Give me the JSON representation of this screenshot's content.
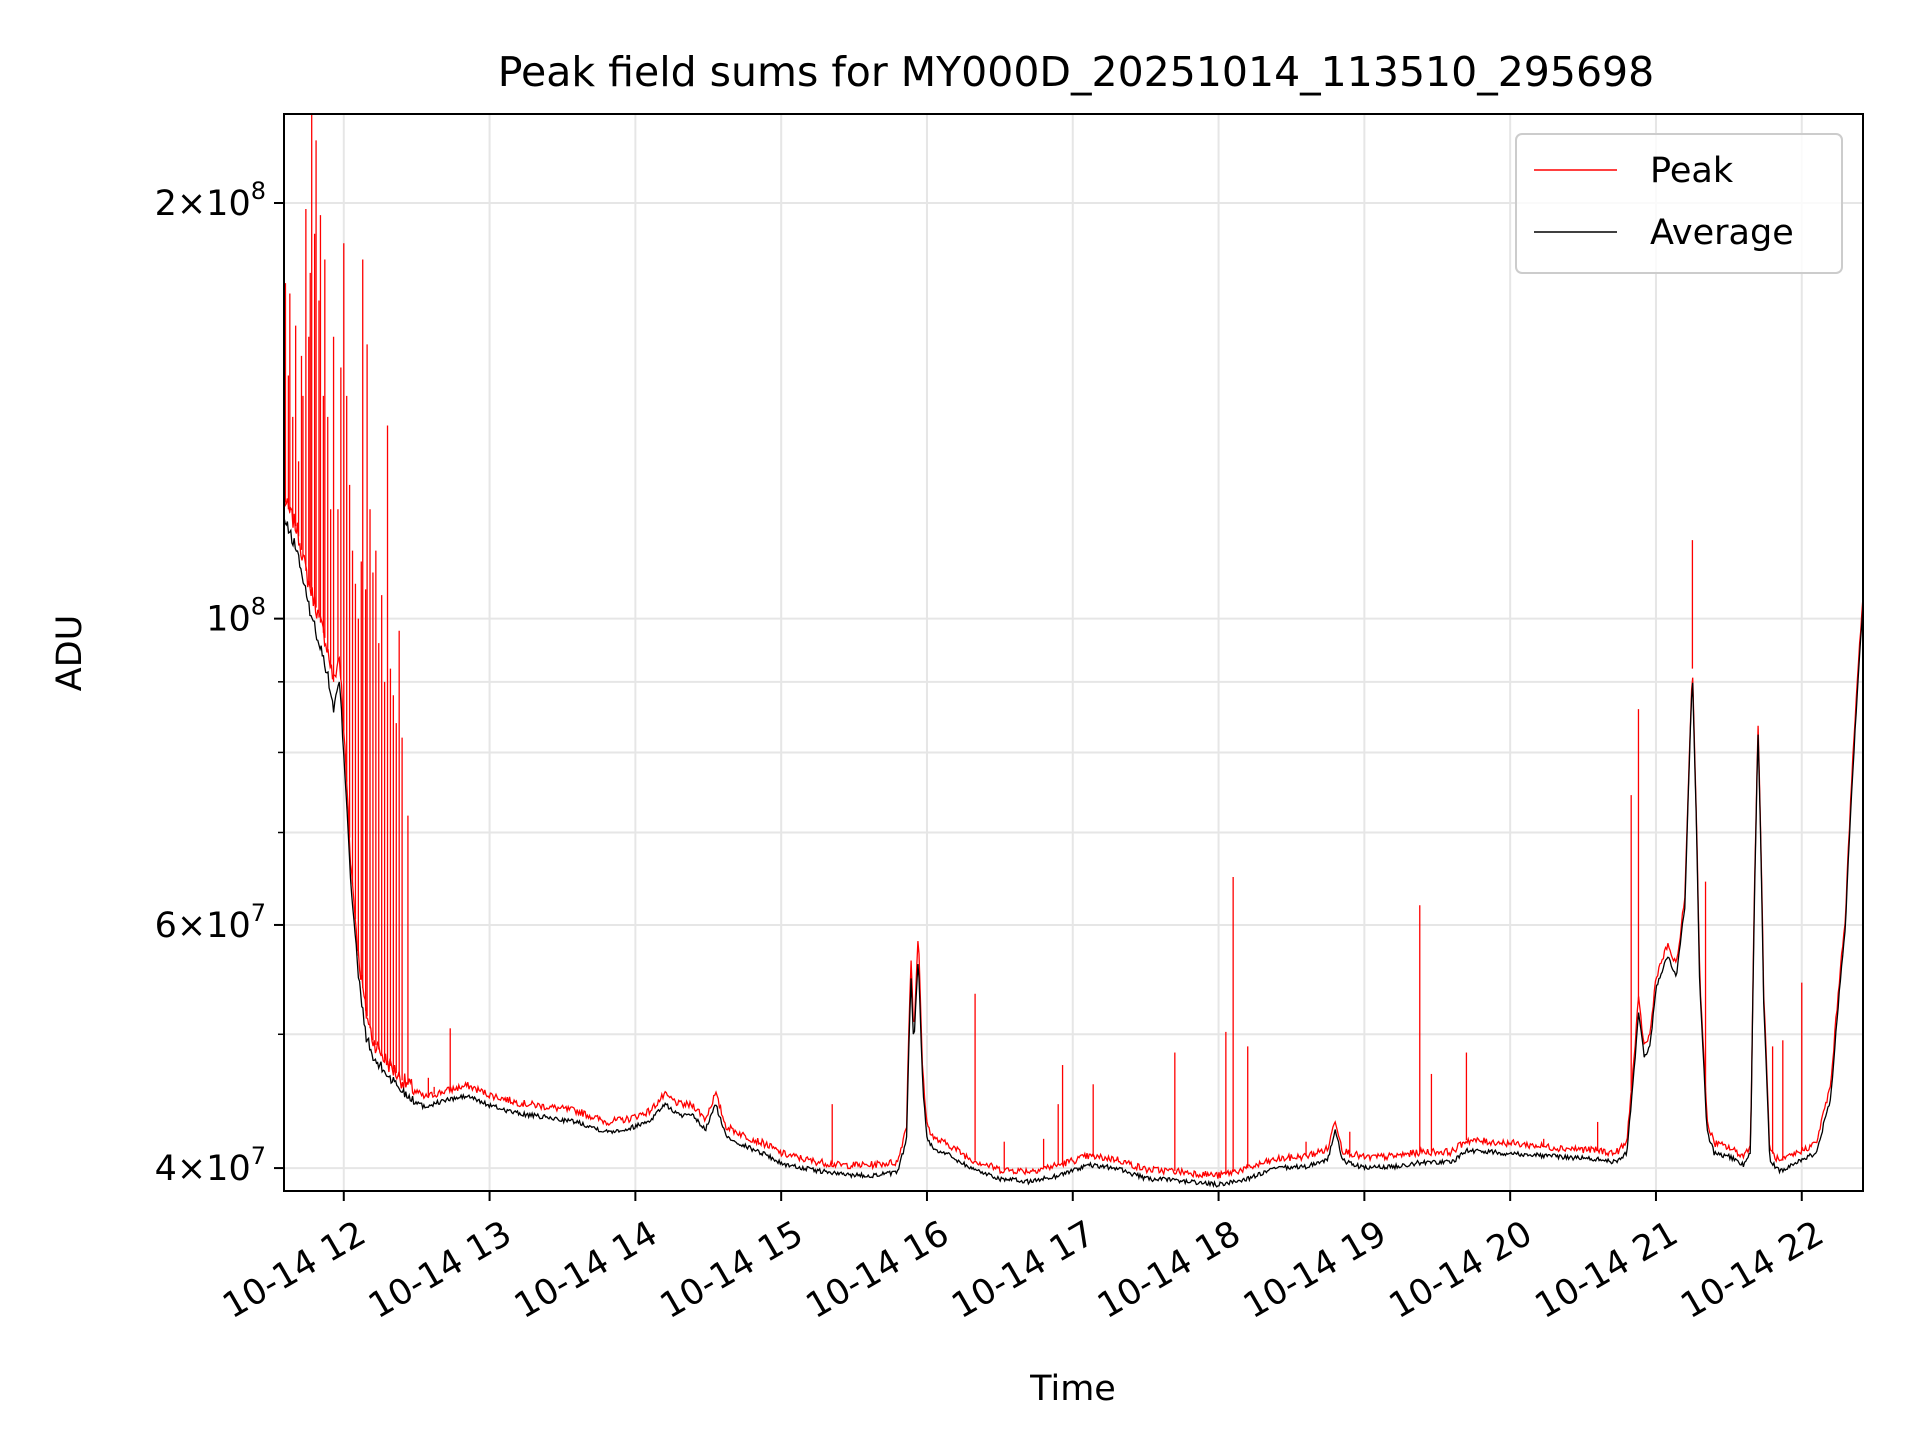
{
  "chart_data": {
    "type": "line",
    "title": "Peak field sums for MY000D_20251014_113510_295698",
    "xlabel": "Time",
    "ylabel": "ADU",
    "yscale": "log",
    "ylim": [
      38500000,
      232000000
    ],
    "xlim_hours": [
      11.59,
      22.42
    ],
    "grid": true,
    "legend": {
      "position": "upper right",
      "entries": [
        {
          "name": "Peak",
          "color": "#ff0000"
        },
        {
          "name": "Average",
          "color": "#000000"
        }
      ]
    },
    "x_ticks": [
      {
        "hour": 12,
        "label": "10-14 12"
      },
      {
        "hour": 13,
        "label": "10-14 13"
      },
      {
        "hour": 14,
        "label": "10-14 14"
      },
      {
        "hour": 15,
        "label": "10-14 15"
      },
      {
        "hour": 16,
        "label": "10-14 16"
      },
      {
        "hour": 17,
        "label": "10-14 17"
      },
      {
        "hour": 18,
        "label": "10-14 18"
      },
      {
        "hour": 19,
        "label": "10-14 19"
      },
      {
        "hour": 20,
        "label": "10-14 20"
      },
      {
        "hour": 21,
        "label": "10-14 21"
      },
      {
        "hour": 22,
        "label": "10-14 22"
      }
    ],
    "y_major_ticks": [
      {
        "value": 40000000,
        "mant": "4",
        "exp": "7"
      },
      {
        "value": 60000000,
        "mant": "6",
        "exp": "7"
      },
      {
        "value": 100000000,
        "mant": "",
        "exp": "8"
      },
      {
        "value": 200000000,
        "mant": "2",
        "exp": "8"
      }
    ],
    "y_minor_ticks": [
      50000000,
      70000000,
      80000000,
      90000000
    ],
    "average_series": {
      "name": "Average",
      "color": "#000000",
      "points": [
        [
          11.59,
          118
        ],
        [
          11.68,
          112
        ],
        [
          11.75,
          103
        ],
        [
          11.82,
          97
        ],
        [
          11.88,
          92
        ],
        [
          11.93,
          86
        ],
        [
          11.97,
          90
        ],
        [
          12.0,
          80
        ],
        [
          12.05,
          64
        ],
        [
          12.1,
          55
        ],
        [
          12.15,
          50
        ],
        [
          12.2,
          48
        ],
        [
          12.28,
          47
        ],
        [
          12.4,
          45.5
        ],
        [
          12.55,
          44.3
        ],
        [
          12.7,
          44.8
        ],
        [
          12.85,
          45.1
        ],
        [
          13.0,
          44.4
        ],
        [
          13.2,
          43.8
        ],
        [
          13.4,
          43.5
        ],
        [
          13.6,
          43.2
        ],
        [
          13.8,
          42.5
        ],
        [
          13.95,
          42.7
        ],
        [
          14.1,
          43.3
        ],
        [
          14.2,
          44.5
        ],
        [
          14.3,
          43.7
        ],
        [
          14.4,
          43.6
        ],
        [
          14.48,
          42.6
        ],
        [
          14.55,
          44.5
        ],
        [
          14.62,
          42.2
        ],
        [
          14.75,
          41.5
        ],
        [
          14.9,
          40.9
        ],
        [
          15.0,
          40.3
        ],
        [
          15.2,
          39.9
        ],
        [
          15.4,
          39.6
        ],
        [
          15.6,
          39.5
        ],
        [
          15.8,
          39.7
        ],
        [
          15.86,
          42
        ],
        [
          15.89,
          55
        ],
        [
          15.91,
          49
        ],
        [
          15.94,
          57
        ],
        [
          15.97,
          46
        ],
        [
          16.0,
          42
        ],
        [
          16.05,
          41.3
        ],
        [
          16.15,
          40.9
        ],
        [
          16.3,
          40.0
        ],
        [
          16.5,
          39.3
        ],
        [
          16.7,
          39.1
        ],
        [
          16.9,
          39.5
        ],
        [
          17.1,
          40.2
        ],
        [
          17.3,
          40.0
        ],
        [
          17.5,
          39.3
        ],
        [
          17.7,
          39.2
        ],
        [
          17.9,
          39.0
        ],
        [
          18.0,
          38.9
        ],
        [
          18.2,
          39.3
        ],
        [
          18.4,
          40.0
        ],
        [
          18.6,
          40.1
        ],
        [
          18.75,
          40.6
        ],
        [
          18.8,
          42.6
        ],
        [
          18.85,
          40.5
        ],
        [
          19.0,
          40.0
        ],
        [
          19.2,
          40.1
        ],
        [
          19.4,
          40.4
        ],
        [
          19.6,
          40.4
        ],
        [
          19.7,
          41.2
        ],
        [
          20.0,
          41.0
        ],
        [
          20.3,
          40.8
        ],
        [
          20.6,
          40.6
        ],
        [
          20.72,
          40.4
        ],
        [
          20.8,
          41.0
        ],
        [
          20.85,
          47
        ],
        [
          20.88,
          52
        ],
        [
          20.92,
          48
        ],
        [
          20.96,
          49
        ],
        [
          21.0,
          54
        ],
        [
          21.08,
          57
        ],
        [
          21.14,
          55
        ],
        [
          21.2,
          62
        ],
        [
          21.25,
          91
        ],
        [
          21.3,
          54
        ],
        [
          21.35,
          42.5
        ],
        [
          21.4,
          41
        ],
        [
          21.5,
          40.8
        ],
        [
          21.6,
          40.2
        ],
        [
          21.65,
          41
        ],
        [
          21.7,
          83
        ],
        [
          21.74,
          52
        ],
        [
          21.78,
          40.5
        ],
        [
          21.85,
          39.8
        ],
        [
          22.0,
          40.6
        ],
        [
          22.1,
          41.0
        ],
        [
          22.2,
          45
        ],
        [
          22.3,
          60
        ],
        [
          22.42,
          102
        ]
      ]
    },
    "peak_series": {
      "name": "Peak",
      "color": "#ff0000",
      "points": [
        [
          11.59,
          122
        ],
        [
          11.68,
          116
        ],
        [
          11.75,
          107
        ],
        [
          11.82,
          101
        ],
        [
          11.88,
          96
        ],
        [
          11.93,
          90
        ],
        [
          11.97,
          94
        ],
        [
          12.0,
          83
        ],
        [
          12.05,
          66
        ],
        [
          12.1,
          57
        ],
        [
          12.15,
          52
        ],
        [
          12.2,
          49.5
        ],
        [
          12.28,
          48
        ],
        [
          12.4,
          46.3
        ],
        [
          12.55,
          45.0
        ],
        [
          12.7,
          45.5
        ],
        [
          12.85,
          45.9
        ],
        [
          13.0,
          45.2
        ],
        [
          13.2,
          44.6
        ],
        [
          13.4,
          44.3
        ],
        [
          13.6,
          44.0
        ],
        [
          13.8,
          43.2
        ],
        [
          13.95,
          43.4
        ],
        [
          14.1,
          44.0
        ],
        [
          14.2,
          45.2
        ],
        [
          14.3,
          44.5
        ],
        [
          14.4,
          44.4
        ],
        [
          14.48,
          43.4
        ],
        [
          14.55,
          45.3
        ],
        [
          14.62,
          42.9
        ],
        [
          14.75,
          42.2
        ],
        [
          14.9,
          41.6
        ],
        [
          15.0,
          41.0
        ],
        [
          15.2,
          40.5
        ],
        [
          15.4,
          40.2
        ],
        [
          15.6,
          40.2
        ],
        [
          15.8,
          40.4
        ],
        [
          15.86,
          43
        ],
        [
          15.89,
          57
        ],
        [
          15.91,
          50
        ],
        [
          15.94,
          59
        ],
        [
          15.97,
          47
        ],
        [
          16.0,
          43
        ],
        [
          16.05,
          42.0
        ],
        [
          16.15,
          41.6
        ],
        [
          16.3,
          40.6
        ],
        [
          16.5,
          39.9
        ],
        [
          16.7,
          39.8
        ],
        [
          16.9,
          40.2
        ],
        [
          17.1,
          40.8
        ],
        [
          17.3,
          40.6
        ],
        [
          17.5,
          39.9
        ],
        [
          17.7,
          39.8
        ],
        [
          17.9,
          39.6
        ],
        [
          18.0,
          39.5
        ],
        [
          18.2,
          40.0
        ],
        [
          18.4,
          40.6
        ],
        [
          18.6,
          40.8
        ],
        [
          18.75,
          41.3
        ],
        [
          18.8,
          43.4
        ],
        [
          18.85,
          41.2
        ],
        [
          19.0,
          40.7
        ],
        [
          19.2,
          40.8
        ],
        [
          19.4,
          41.1
        ],
        [
          19.6,
          41.1
        ],
        [
          19.7,
          41.9
        ],
        [
          20.0,
          41.7
        ],
        [
          20.3,
          41.4
        ],
        [
          20.6,
          41.2
        ],
        [
          20.72,
          41.0
        ],
        [
          20.8,
          41.7
        ],
        [
          20.85,
          48
        ],
        [
          20.88,
          53
        ],
        [
          20.92,
          49
        ],
        [
          20.96,
          50
        ],
        [
          21.0,
          55
        ],
        [
          21.08,
          58
        ],
        [
          21.14,
          56
        ],
        [
          21.2,
          63
        ],
        [
          21.25,
          92
        ],
        [
          21.3,
          55
        ],
        [
          21.35,
          43.2
        ],
        [
          21.4,
          41.7
        ],
        [
          21.5,
          41.4
        ],
        [
          21.6,
          40.8
        ],
        [
          21.65,
          41.6
        ],
        [
          21.7,
          84
        ],
        [
          21.74,
          53
        ],
        [
          21.78,
          41.2
        ],
        [
          21.85,
          40.4
        ],
        [
          22.0,
          41.2
        ],
        [
          22.1,
          41.7
        ],
        [
          22.2,
          46
        ],
        [
          22.3,
          61
        ],
        [
          22.42,
          104
        ]
      ]
    },
    "peak_spikes": [
      [
        11.6,
        175
      ],
      [
        11.62,
        150
      ],
      [
        11.63,
        172
      ],
      [
        11.65,
        140
      ],
      [
        11.67,
        163
      ],
      [
        11.69,
        130
      ],
      [
        11.71,
        155
      ],
      [
        11.72,
        145
      ],
      [
        11.74,
        198
      ],
      [
        11.76,
        160
      ],
      [
        11.77,
        178
      ],
      [
        11.78,
        232
      ],
      [
        11.8,
        190
      ],
      [
        11.81,
        222
      ],
      [
        11.83,
        170
      ],
      [
        11.84,
        196
      ],
      [
        11.86,
        145
      ],
      [
        11.87,
        182
      ],
      [
        11.89,
        140
      ],
      [
        11.91,
        120
      ],
      [
        11.93,
        160
      ],
      [
        11.96,
        120
      ],
      [
        11.98,
        152
      ],
      [
        12.0,
        187
      ],
      [
        12.02,
        145
      ],
      [
        12.04,
        125
      ],
      [
        12.06,
        112
      ],
      [
        12.08,
        106
      ],
      [
        12.1,
        100
      ],
      [
        12.12,
        110
      ],
      [
        12.13,
        182
      ],
      [
        12.15,
        105
      ],
      [
        12.16,
        158
      ],
      [
        12.18,
        120
      ],
      [
        12.2,
        108
      ],
      [
        12.22,
        112
      ],
      [
        12.24,
        96
      ],
      [
        12.26,
        104
      ],
      [
        12.28,
        90
      ],
      [
        12.3,
        138
      ],
      [
        12.32,
        92
      ],
      [
        12.34,
        88
      ],
      [
        12.36,
        84
      ],
      [
        12.38,
        98
      ],
      [
        12.4,
        82
      ],
      [
        12.44,
        72
      ],
      [
        12.73,
        50.5
      ],
      [
        12.58,
        46.5
      ],
      [
        12.62,
        45.8
      ],
      [
        15.35,
        44.5
      ],
      [
        16.33,
        53.5
      ],
      [
        16.53,
        41.8
      ],
      [
        16.8,
        42.0
      ],
      [
        16.9,
        44.5
      ],
      [
        16.93,
        47.5
      ],
      [
        17.14,
        46.0
      ],
      [
        17.7,
        48.5
      ],
      [
        18.05,
        50.2
      ],
      [
        18.1,
        65.0
      ],
      [
        18.2,
        49.0
      ],
      [
        18.6,
        41.8
      ],
      [
        18.9,
        42.5
      ],
      [
        19.38,
        62.0
      ],
      [
        19.46,
        46.8
      ],
      [
        19.7,
        48.5
      ],
      [
        20.23,
        42.0
      ],
      [
        20.6,
        43.2
      ],
      [
        20.83,
        74.5
      ],
      [
        20.88,
        86.0
      ],
      [
        21.25,
        114
      ],
      [
        21.34,
        64.5
      ],
      [
        21.8,
        49.0
      ],
      [
        21.87,
        49.5
      ],
      [
        22.0,
        54.5
      ]
    ]
  }
}
